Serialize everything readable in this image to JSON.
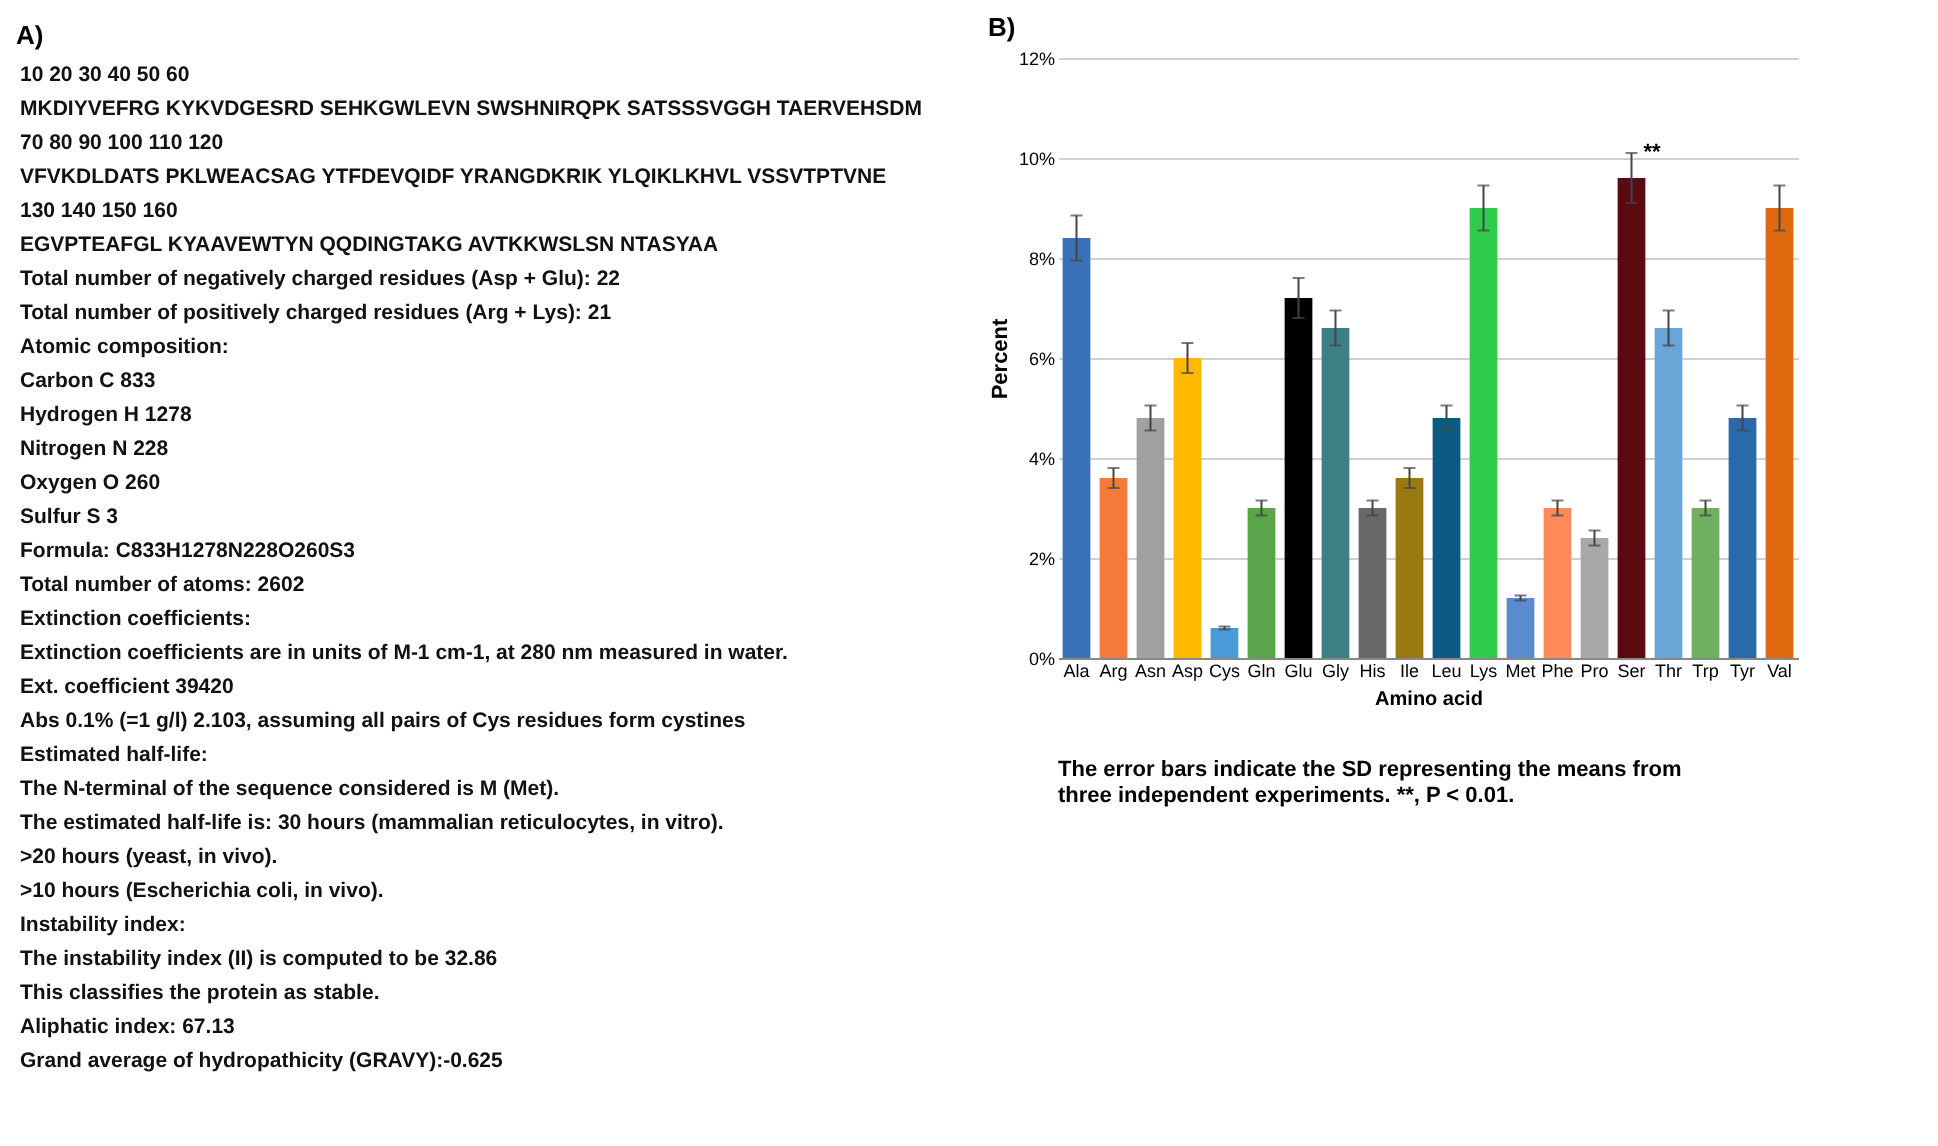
{
  "chart_data": [
    {
      "type": "other",
      "title": "A)",
      "annotations": [
        "10 20 30 40 50 60",
        "MKDIYVEFRG KYKVDGESRD SEHKGWLEVN SWSHNIRQPK SATSSSVGGH TAERVEHSDM",
        "70 80 90 100 110 120",
        "VFVKDLDATS PKLWEACSAG YTFDEVQIDF YRANGDKRIK YLQIKLKHVL VSSVTPTVNE",
        "130 140 150 160",
        "EGVPTEAFGL KYAAVEWTYN QQDINGTAKG AVTKKWSLSN NTASYAA",
        "Total number of negatively charged residues (Asp + Glu): 22",
        "Total number of positively charged residues (Arg + Lys): 21",
        "Atomic composition:",
        "Carbon C 833",
        "Hydrogen H 1278",
        "Nitrogen N 228",
        "Oxygen O 260",
        "Sulfur S 3",
        "Formula: C833H1278N228O260S3",
        "Total number of atoms: 2602",
        "Extinction coefficients:",
        "Extinction coefficients are in units of M-1 cm-1, at 280 nm measured in water.",
        "Ext. coefficient 39420",
        "Abs 0.1% (=1 g/l) 2.103, assuming all pairs of Cys residues form cystines",
        "Estimated half-life:",
        "The N-terminal of the sequence considered is M (Met).",
        "The estimated half-life is: 30 hours (mammalian reticulocytes, in vitro).",
        ">20 hours (yeast, in vivo).",
        ">10 hours (Escherichia coli, in vivo).",
        "Instability index:",
        "The instability index (II) is computed to be 32.86",
        "This classifies the protein as stable.",
        "Aliphatic index: 67.13",
        "Grand average of hydropathicity (GRAVY):-0.625"
      ]
    },
    {
      "type": "bar",
      "title": "B)",
      "xlabel": "Amino acid",
      "ylabel": "Percent",
      "categories": [
        "Ala",
        "Arg",
        "Asn",
        "Asp",
        "Cys",
        "Gln",
        "Glu",
        "Gly",
        "His",
        "Ile",
        "Leu",
        "Lys",
        "Met",
        "Phe",
        "Pro",
        "Ser",
        "Thr",
        "Trp",
        "Tyr",
        "Val"
      ],
      "values": [
        8.4,
        3.6,
        4.8,
        6.0,
        0.6,
        3.0,
        7.2,
        6.6,
        3.0,
        3.6,
        4.8,
        9.0,
        1.2,
        3.0,
        2.4,
        9.6,
        6.6,
        3.0,
        4.8,
        9.0
      ],
      "errors": [
        0.45,
        0.2,
        0.25,
        0.3,
        0.03,
        0.15,
        0.4,
        0.35,
        0.15,
        0.2,
        0.25,
        0.45,
        0.05,
        0.15,
        0.15,
        0.5,
        0.35,
        0.15,
        0.25,
        0.45
      ],
      "colors": [
        "#3a70b5",
        "#f47a3a",
        "#a0a0a0",
        "#ffb800",
        "#4a9ad8",
        "#5aa54a",
        "#000000",
        "#3d7f85",
        "#686868",
        "#9a7a10",
        "#0a5a85",
        "#2ecc4a",
        "#5a8ad0",
        "#ff8a5a",
        "#a8a8a8",
        "#5a0a10",
        "#6aa5d8",
        "#70b060",
        "#2a6aaa",
        "#e06a10"
      ],
      "ylim": [
        0,
        12
      ],
      "yticks": [
        {
          "value": 0,
          "label": "0%"
        },
        {
          "value": 2,
          "label": "2%"
        },
        {
          "value": 4,
          "label": "4%"
        },
        {
          "value": 6,
          "label": "6%"
        },
        {
          "value": 8,
          "label": "8%"
        },
        {
          "value": 10,
          "label": "10%"
        },
        {
          "value": 12,
          "label": "12%"
        }
      ],
      "grid": "y",
      "annotations": [
        {
          "text": "**",
          "x": "Ser",
          "y": 10.1
        },
        "The error bars indicate the SD representing the means from\nthree independent experiments. **, P < 0.01."
      ]
    }
  ]
}
